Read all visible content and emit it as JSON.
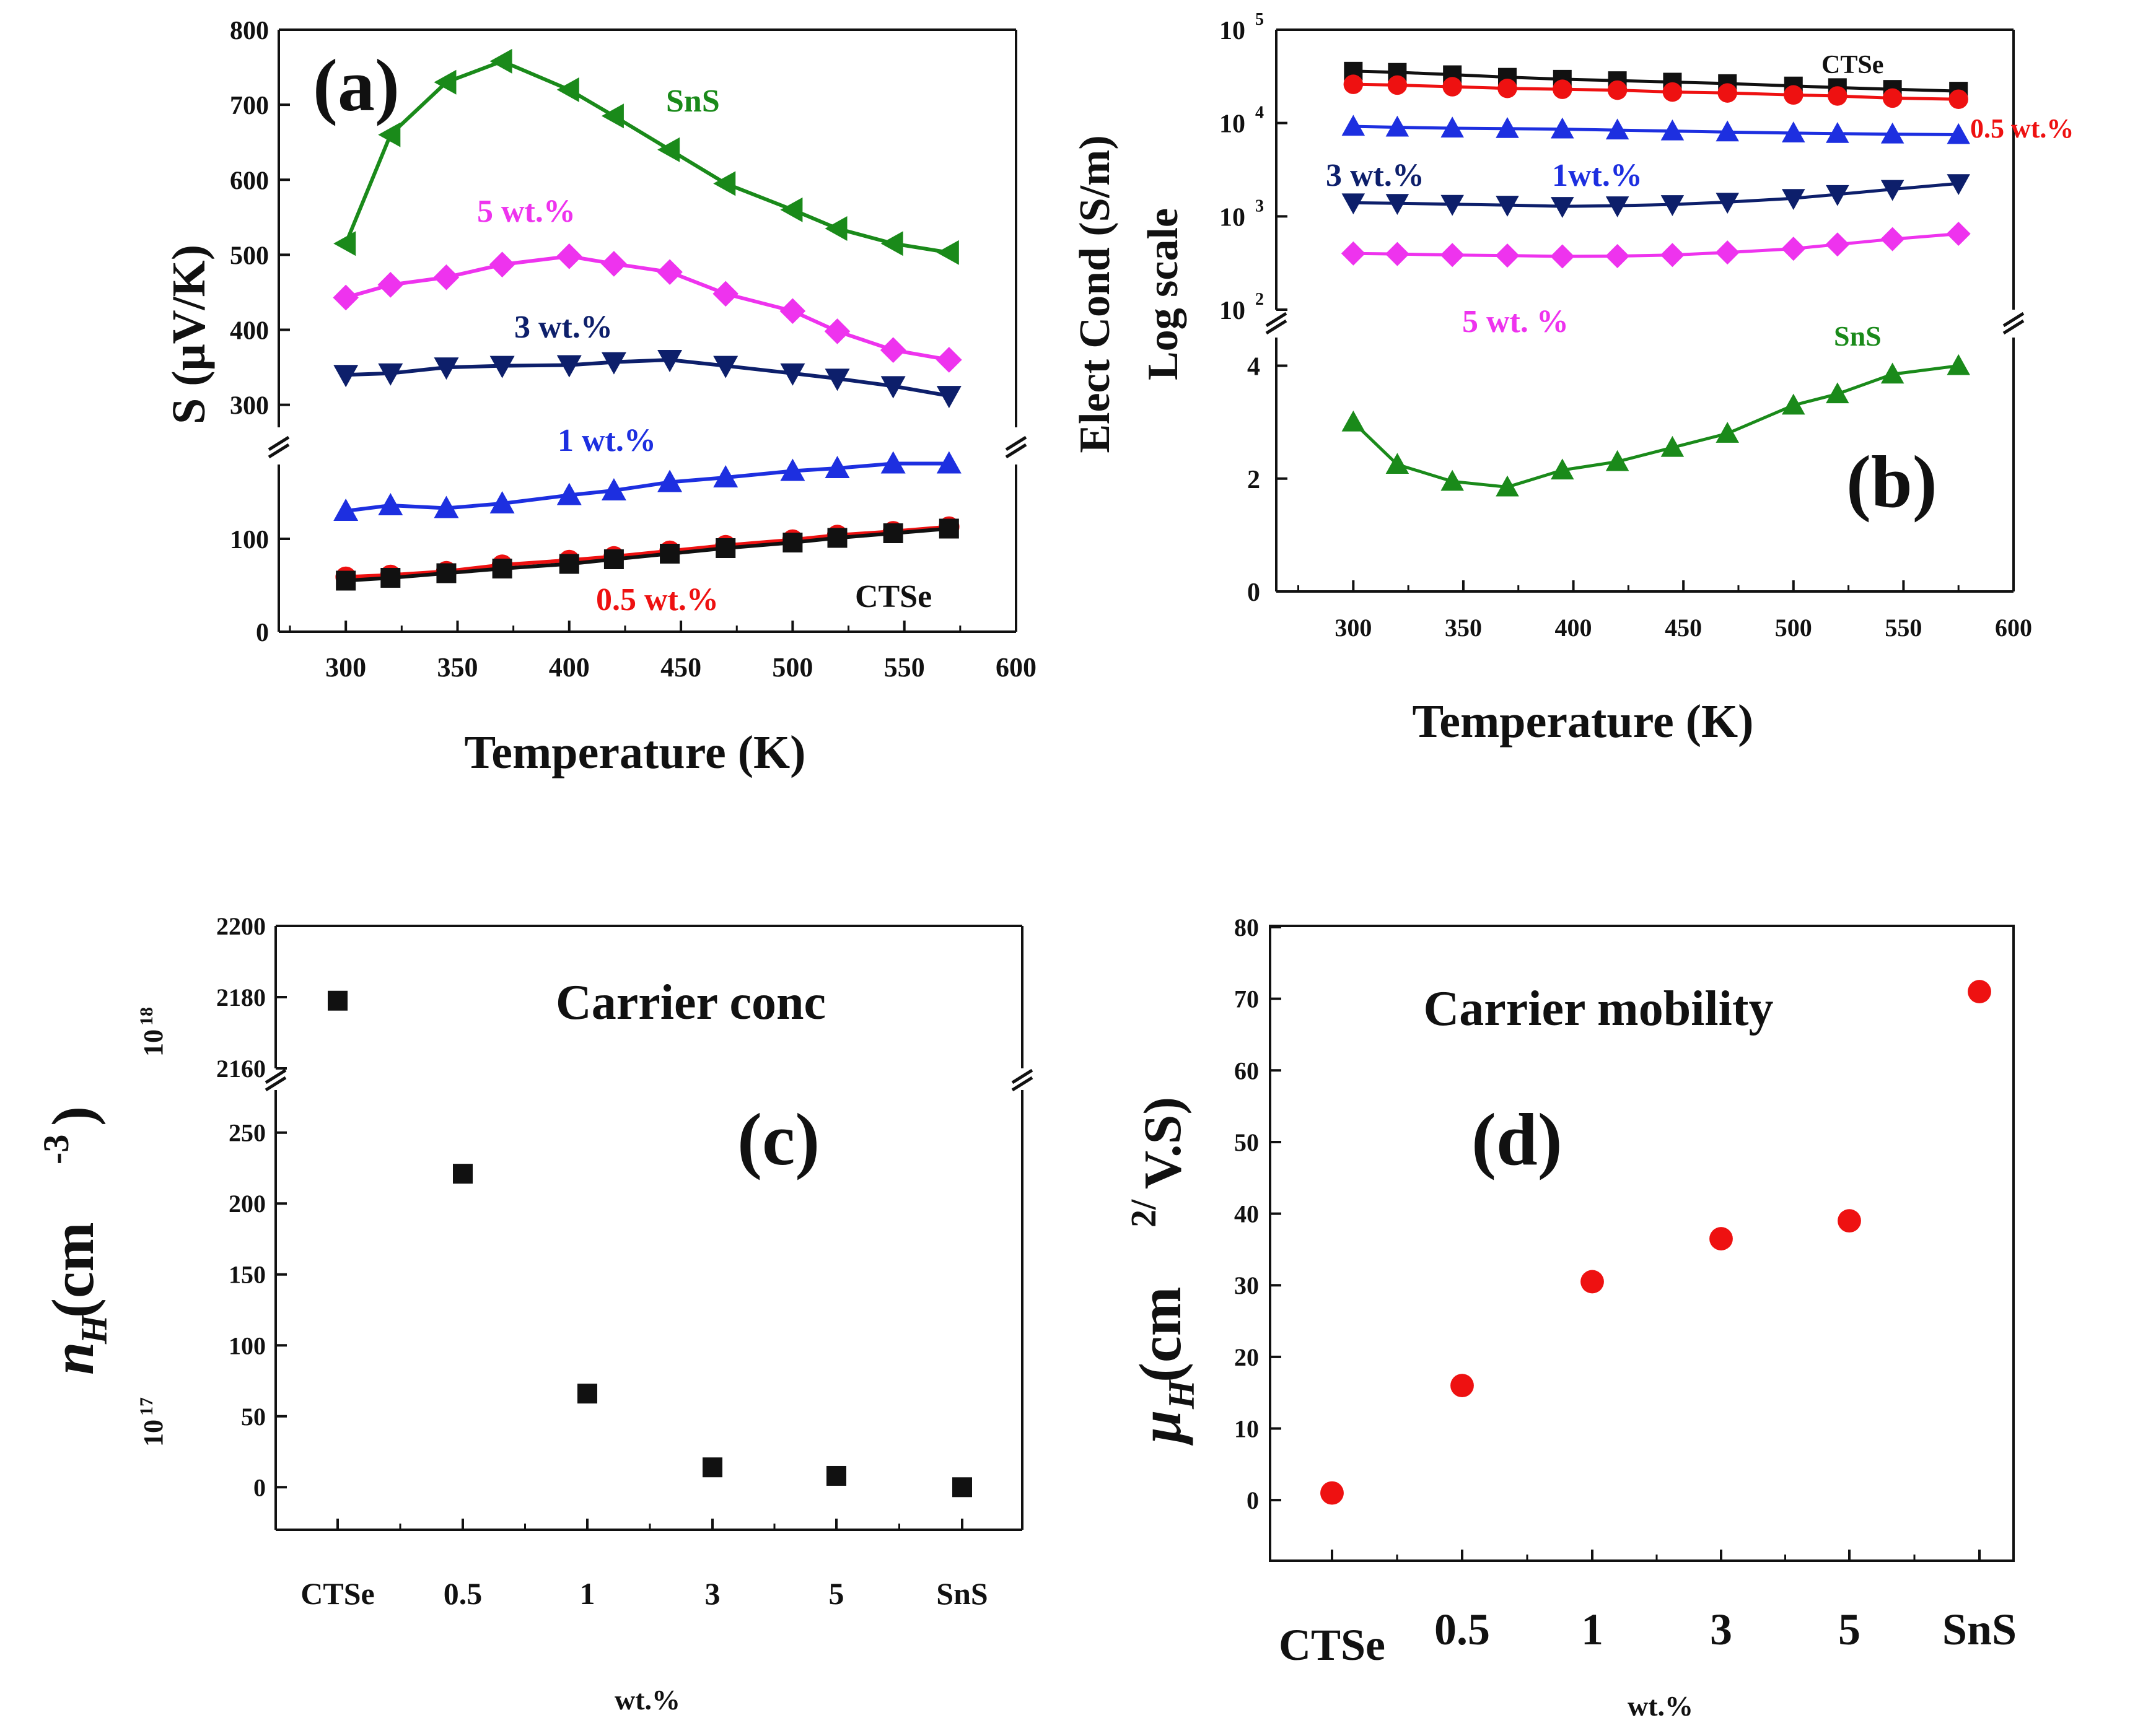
{
  "chart_data": [
    {
      "panel": "a",
      "type": "line",
      "panel_label": "(a)",
      "xlabel": "Temperature (K)",
      "ylabel": "S (μV/K)",
      "x": [
        300,
        320,
        345,
        370,
        400,
        420,
        445,
        470,
        500,
        520,
        545,
        570
      ],
      "xticks": [
        "300",
        "350",
        "400",
        "450",
        "500",
        "550",
        "600"
      ],
      "xlim": [
        270,
        600
      ],
      "ylim_lower": [
        0,
        180
      ],
      "ylim_upper": [
        270,
        800
      ],
      "yticks_lower": [
        "0",
        "100"
      ],
      "yticks_upper": [
        "300",
        "400",
        "500",
        "600",
        "700",
        "800"
      ],
      "series": [
        {
          "name": "SnS",
          "label": "SnS",
          "color": "#1a8a1a",
          "marker": "triangle-left",
          "values": [
            515,
            660,
            730,
            758,
            720,
            685,
            640,
            595,
            560,
            535,
            515,
            503
          ]
        },
        {
          "name": "5 wt.%",
          "label": "5 wt.%",
          "color": "#ee33ee",
          "marker": "diamond",
          "values": [
            443,
            460,
            470,
            487,
            498,
            488,
            477,
            448,
            425,
            398,
            373,
            360
          ]
        },
        {
          "name": "3 wt.%",
          "label": "3 wt.%",
          "color": "#0d1f6b",
          "marker": "triangle-down",
          "values": [
            340,
            342,
            350,
            352,
            353,
            357,
            360,
            352,
            342,
            335,
            325,
            312
          ]
        },
        {
          "name": "1 wt.%",
          "label": "1 wt.%",
          "color": "#1d2fe0",
          "marker": "triangle-up",
          "values": [
            130,
            136,
            133,
            138,
            147,
            152,
            161,
            166,
            173,
            176,
            181,
            181
          ]
        },
        {
          "name": "0.5 wt.%",
          "label": "0.5 wt.%",
          "color": "#ee1111",
          "marker": "circle",
          "values": [
            59,
            61,
            65,
            72,
            77,
            81,
            87,
            93,
            99,
            104,
            108,
            113
          ]
        },
        {
          "name": "CTSe",
          "label": "CTSe",
          "color": "#111111",
          "marker": "square",
          "values": [
            55,
            58,
            63,
            68,
            73,
            78,
            84,
            90,
            96,
            101,
            106,
            111
          ]
        }
      ]
    },
    {
      "panel": "b",
      "type": "line",
      "panel_label": "(b)",
      "xlabel": "Temperature (K)",
      "ylabel_line1": "Elect Cond (S/m)",
      "ylabel_line2": "Log scale",
      "x": [
        300,
        320,
        345,
        370,
        395,
        420,
        445,
        470,
        500,
        520,
        545,
        575
      ],
      "xticks": [
        "300",
        "350",
        "400",
        "450",
        "500",
        "550",
        "600"
      ],
      "xlim": [
        265,
        600
      ],
      "ylim_lower": [
        0,
        4.5
      ],
      "ylim_upper_log": [
        100,
        100000
      ],
      "yticks_lower": [
        "0",
        "2",
        "4"
      ],
      "yticks_upper": [
        {
          "base": "10",
          "exp": "2"
        },
        {
          "base": "10",
          "exp": "3"
        },
        {
          "base": "10",
          "exp": "4"
        },
        {
          "base": "10",
          "exp": "5"
        }
      ],
      "series": [
        {
          "name": "CTSe",
          "label": "CTSe",
          "color": "#111111",
          "marker": "square",
          "values": [
            36000,
            35000,
            33000,
            31000,
            29500,
            28500,
            27500,
            26500,
            25000,
            24000,
            23000,
            22000
          ]
        },
        {
          "name": "0.5 wt.%",
          "label": "0.5 wt.%",
          "color": "#ee1111",
          "marker": "circle",
          "values": [
            26000,
            25500,
            24500,
            23500,
            23000,
            22500,
            21500,
            21000,
            20000,
            19500,
            18500,
            18000
          ]
        },
        {
          "name": "1 wt.%",
          "label": "1wt.%",
          "color": "#1d2fe0",
          "marker": "triangle-up",
          "values": [
            9200,
            9000,
            8800,
            8700,
            8600,
            8400,
            8200,
            8000,
            7800,
            7700,
            7600,
            7500
          ]
        },
        {
          "name": "3 wt.%",
          "label": "3 wt.%",
          "color": "#0d1f6b",
          "marker": "triangle-down",
          "values": [
            1400,
            1380,
            1350,
            1320,
            1280,
            1300,
            1340,
            1420,
            1560,
            1720,
            1950,
            2250
          ]
        },
        {
          "name": "5 wt.%",
          "label": "5 wt. %",
          "color": "#ee33ee",
          "marker": "diamond",
          "values": [
            400,
            395,
            385,
            380,
            372,
            375,
            385,
            410,
            450,
            500,
            570,
            650
          ]
        },
        {
          "name": "SnS",
          "label": "SnS",
          "color": "#1a8a1a",
          "marker": "triangle-up",
          "scale": "lower",
          "values": [
            3.0,
            2.25,
            1.95,
            1.85,
            2.15,
            2.3,
            2.55,
            2.8,
            3.3,
            3.5,
            3.85,
            4.0
          ]
        }
      ]
    },
    {
      "panel": "c",
      "type": "scatter",
      "panel_label": "(c)",
      "title": "Carrier conc",
      "xlabel": "wt.%",
      "ylabel_main": "n",
      "ylabel_sub": "H",
      "ylabel_rest": "(cm",
      "ylabel_sup": "-3",
      "ylabel_close": ")",
      "exp_upper": {
        "base": "10",
        "exp": "18"
      },
      "exp_lower": {
        "base": "10",
        "exp": "17"
      },
      "categories": [
        "CTSe",
        "0.5",
        "1",
        "3",
        "5",
        "SnS"
      ],
      "values": [
        2179,
        221,
        66,
        14,
        8,
        0
      ],
      "upper_range": [
        2160,
        2200
      ],
      "lower_range": [
        -30,
        280
      ],
      "yticks_upper": [
        "2160",
        "2180",
        "2200"
      ],
      "yticks_lower": [
        "0",
        "50",
        "100",
        "150",
        "200",
        "250"
      ],
      "marker_color": "#111111",
      "marker": "square"
    },
    {
      "panel": "d",
      "type": "scatter",
      "panel_label": "(d)",
      "title": "Carrier mobility",
      "xlabel": "wt.%",
      "ylabel_main": "μ",
      "ylabel_sub": "H",
      "ylabel_rest": "(cm",
      "ylabel_sup": "2/",
      "ylabel_close": "V.S)",
      "categories": [
        "CTSe",
        "0.5",
        "1",
        "3",
        "5",
        "SnS"
      ],
      "values": [
        1,
        16,
        30.5,
        36.5,
        39,
        71
      ],
      "ylim": [
        -5,
        80
      ],
      "yticks": [
        "0",
        "10",
        "20",
        "30",
        "40",
        "50",
        "60",
        "70",
        "80"
      ],
      "marker_color": "#ee1111",
      "marker": "circle"
    }
  ]
}
